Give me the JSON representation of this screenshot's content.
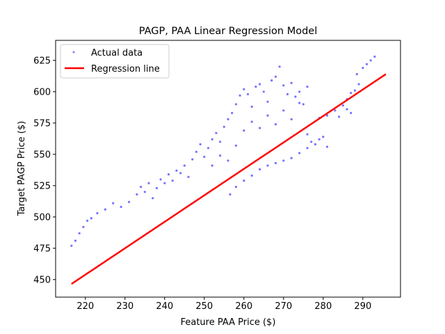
{
  "chart_data": {
    "type": "scatter",
    "title": "PAGP, PAA Linear Regression Model",
    "xlabel": "Feature PAA Price ($)",
    "ylabel": "Target PAGP Price ($)",
    "xlim": [
      212.5,
      299.5
    ],
    "ylim": [
      436,
      641
    ],
    "xticks": [
      220,
      230,
      240,
      250,
      260,
      270,
      280,
      290
    ],
    "yticks": [
      450,
      475,
      500,
      525,
      550,
      575,
      600,
      625
    ],
    "grid": false,
    "legend_position": "upper-left",
    "series": [
      {
        "name": "Actual data",
        "kind": "scatter",
        "color": "#0000ff",
        "points": [
          [
            216.5,
            477
          ],
          [
            217.5,
            481
          ],
          [
            218.5,
            487
          ],
          [
            219.5,
            492
          ],
          [
            220.5,
            497
          ],
          [
            221.5,
            499
          ],
          [
            223,
            503
          ],
          [
            225,
            506
          ],
          [
            227,
            511
          ],
          [
            229,
            508
          ],
          [
            231,
            512
          ],
          [
            233,
            518
          ],
          [
            234,
            524
          ],
          [
            235,
            520
          ],
          [
            236,
            527
          ],
          [
            237,
            515
          ],
          [
            238,
            523
          ],
          [
            239,
            530
          ],
          [
            240,
            527
          ],
          [
            241,
            534
          ],
          [
            242,
            529
          ],
          [
            243,
            537
          ],
          [
            244,
            535
          ],
          [
            245,
            541
          ],
          [
            246,
            532
          ],
          [
            247,
            546
          ],
          [
            248,
            552
          ],
          [
            249,
            558
          ],
          [
            250,
            548
          ],
          [
            251,
            555
          ],
          [
            252,
            562
          ],
          [
            253,
            567
          ],
          [
            254,
            560
          ],
          [
            255,
            572
          ],
          [
            256,
            578
          ],
          [
            257,
            583
          ],
          [
            258,
            590
          ],
          [
            259,
            597
          ],
          [
            260,
            602
          ],
          [
            261,
            598
          ],
          [
            262,
            588
          ],
          [
            263,
            604
          ],
          [
            264,
            606
          ],
          [
            265,
            600
          ],
          [
            266,
            592
          ],
          [
            267,
            609
          ],
          [
            268,
            612
          ],
          [
            269,
            620
          ],
          [
            270,
            605
          ],
          [
            271,
            598
          ],
          [
            272,
            607
          ],
          [
            273,
            596
          ],
          [
            274,
            600
          ],
          [
            275,
            590
          ],
          [
            276,
            604
          ],
          [
            252,
            541
          ],
          [
            254,
            549
          ],
          [
            256,
            545
          ],
          [
            258,
            557
          ],
          [
            260,
            569
          ],
          [
            262,
            576
          ],
          [
            264,
            571
          ],
          [
            266,
            581
          ],
          [
            268,
            574
          ],
          [
            270,
            585
          ],
          [
            272,
            578
          ],
          [
            274,
            591
          ],
          [
            256.5,
            518
          ],
          [
            258,
            524
          ],
          [
            260,
            529
          ],
          [
            262,
            533
          ],
          [
            264,
            538
          ],
          [
            266,
            541
          ],
          [
            268,
            543
          ],
          [
            270,
            545
          ],
          [
            272,
            547
          ],
          [
            274,
            551
          ],
          [
            276,
            555
          ],
          [
            278,
            558
          ],
          [
            279,
            562
          ],
          [
            280,
            564
          ],
          [
            281,
            556
          ],
          [
            276,
            566
          ],
          [
            277,
            560
          ],
          [
            279,
            579
          ],
          [
            281,
            581
          ],
          [
            283,
            585
          ],
          [
            285,
            589
          ],
          [
            286,
            594
          ],
          [
            287,
            599
          ],
          [
            288,
            601
          ],
          [
            289,
            606
          ],
          [
            284,
            580
          ],
          [
            286,
            586
          ],
          [
            287,
            583
          ],
          [
            288.5,
            614
          ],
          [
            290,
            619
          ],
          [
            291,
            622
          ],
          [
            292,
            625
          ],
          [
            293,
            628
          ]
        ]
      },
      {
        "name": "Regression line",
        "kind": "line",
        "color": "#ff0000",
        "x": [
          216.5,
          295.8
        ],
        "y": [
          446.5,
          614
        ]
      }
    ]
  }
}
